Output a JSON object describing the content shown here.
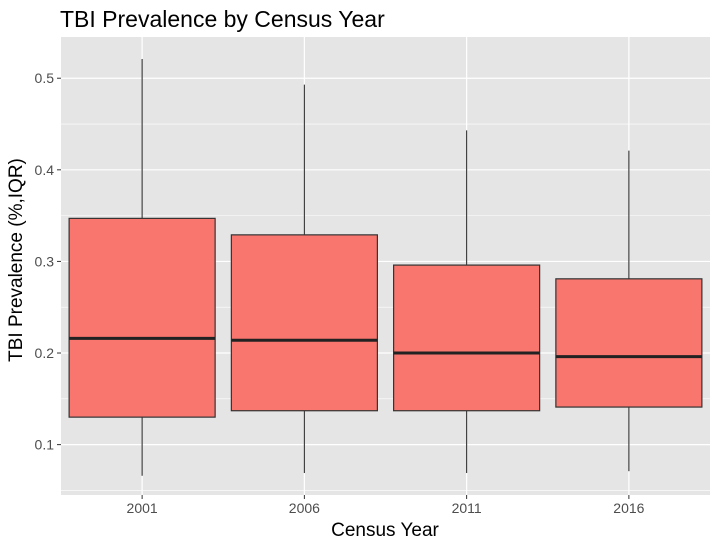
{
  "chart_data": {
    "type": "box",
    "title": "TBI Prevalence by Census Year",
    "xlabel": "Census Year",
    "ylabel": "TBI Prevalence (%,IQR)",
    "ylim": [
      0.045,
      0.545
    ],
    "yticks": [
      0.1,
      0.2,
      0.3,
      0.4,
      0.5
    ],
    "ytick_labels": [
      "0.1",
      "0.2",
      "0.3",
      "0.4",
      "0.5"
    ],
    "categories": [
      "2001",
      "2006",
      "2011",
      "2016"
    ],
    "boxes": [
      {
        "category": "2001",
        "min": 0.066,
        "q1": 0.13,
        "median": 0.216,
        "q3": 0.347,
        "max": 0.521
      },
      {
        "category": "2006",
        "min": 0.069,
        "q1": 0.137,
        "median": 0.214,
        "q3": 0.329,
        "max": 0.493
      },
      {
        "category": "2011",
        "min": 0.069,
        "q1": 0.137,
        "median": 0.2,
        "q3": 0.296,
        "max": 0.443
      },
      {
        "category": "2016",
        "min": 0.071,
        "q1": 0.141,
        "median": 0.196,
        "q3": 0.281,
        "max": 0.421
      }
    ],
    "grid": true,
    "legend": "none",
    "colors": {
      "box_fill": "#F8766D",
      "panel_bg": "#E5E5E5",
      "grid": "#FFFFFF",
      "outline": "#333333"
    }
  }
}
